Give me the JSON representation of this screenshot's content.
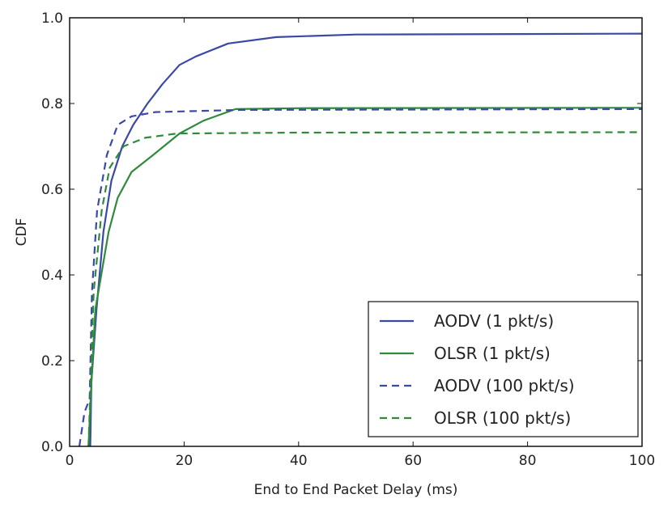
{
  "chart_data": {
    "type": "line",
    "title": "",
    "xlabel": "End to End Packet Delay (ms)",
    "ylabel": "CDF",
    "xlim": [
      0,
      100
    ],
    "ylim": [
      0,
      1.0
    ],
    "xticks": [
      0,
      20,
      40,
      60,
      80,
      100
    ],
    "yticks": [
      0.0,
      0.2,
      0.4,
      0.6,
      0.8,
      1.0
    ],
    "xtick_labels": [
      "0",
      "20",
      "40",
      "60",
      "80",
      "100"
    ],
    "ytick_labels": [
      "0.0",
      "0.2",
      "0.4",
      "0.6",
      "0.8",
      "1.0"
    ],
    "grid": false,
    "legend_position": "lower-right",
    "series": [
      {
        "name": "AODV (1 pkt/s)",
        "color": "#3a49a6",
        "dash": false,
        "x": [
          3.6,
          3.8,
          4.7,
          5.9,
          7.3,
          9.2,
          11.1,
          13.6,
          16.2,
          19.2,
          22.1,
          27.7,
          36.1,
          50,
          100
        ],
        "y": [
          0.0,
          0.15,
          0.32,
          0.5,
          0.62,
          0.7,
          0.75,
          0.8,
          0.845,
          0.89,
          0.91,
          0.94,
          0.955,
          0.961,
          0.963
        ]
      },
      {
        "name": "OLSR (1 pkt/s)",
        "color": "#2e8b3a",
        "dash": false,
        "x": [
          3.3,
          3.8,
          4.5,
          6.8,
          8.4,
          10.8,
          14.6,
          19.2,
          23.4,
          29,
          40,
          100
        ],
        "y": [
          0.0,
          0.15,
          0.32,
          0.5,
          0.58,
          0.64,
          0.68,
          0.73,
          0.76,
          0.787,
          0.789,
          0.79
        ]
      },
      {
        "name": "AODV (100 pkt/s)",
        "color": "#3a49a6",
        "dash": true,
        "x": [
          1.7,
          2.6,
          3.5,
          3.9,
          4.8,
          6.5,
          8.4,
          10.8,
          15.0,
          30,
          100
        ],
        "y": [
          0.0,
          0.08,
          0.11,
          0.36,
          0.55,
          0.68,
          0.75,
          0.77,
          0.78,
          0.785,
          0.787
        ]
      },
      {
        "name": "OLSR (100 pkt/s)",
        "color": "#2e8b3a",
        "dash": true,
        "x": [
          3.3,
          4.2,
          5.6,
          7.0,
          9.4,
          13.2,
          18.8,
          40,
          100
        ],
        "y": [
          0.0,
          0.36,
          0.55,
          0.65,
          0.7,
          0.72,
          0.73,
          0.732,
          0.733
        ]
      }
    ]
  }
}
